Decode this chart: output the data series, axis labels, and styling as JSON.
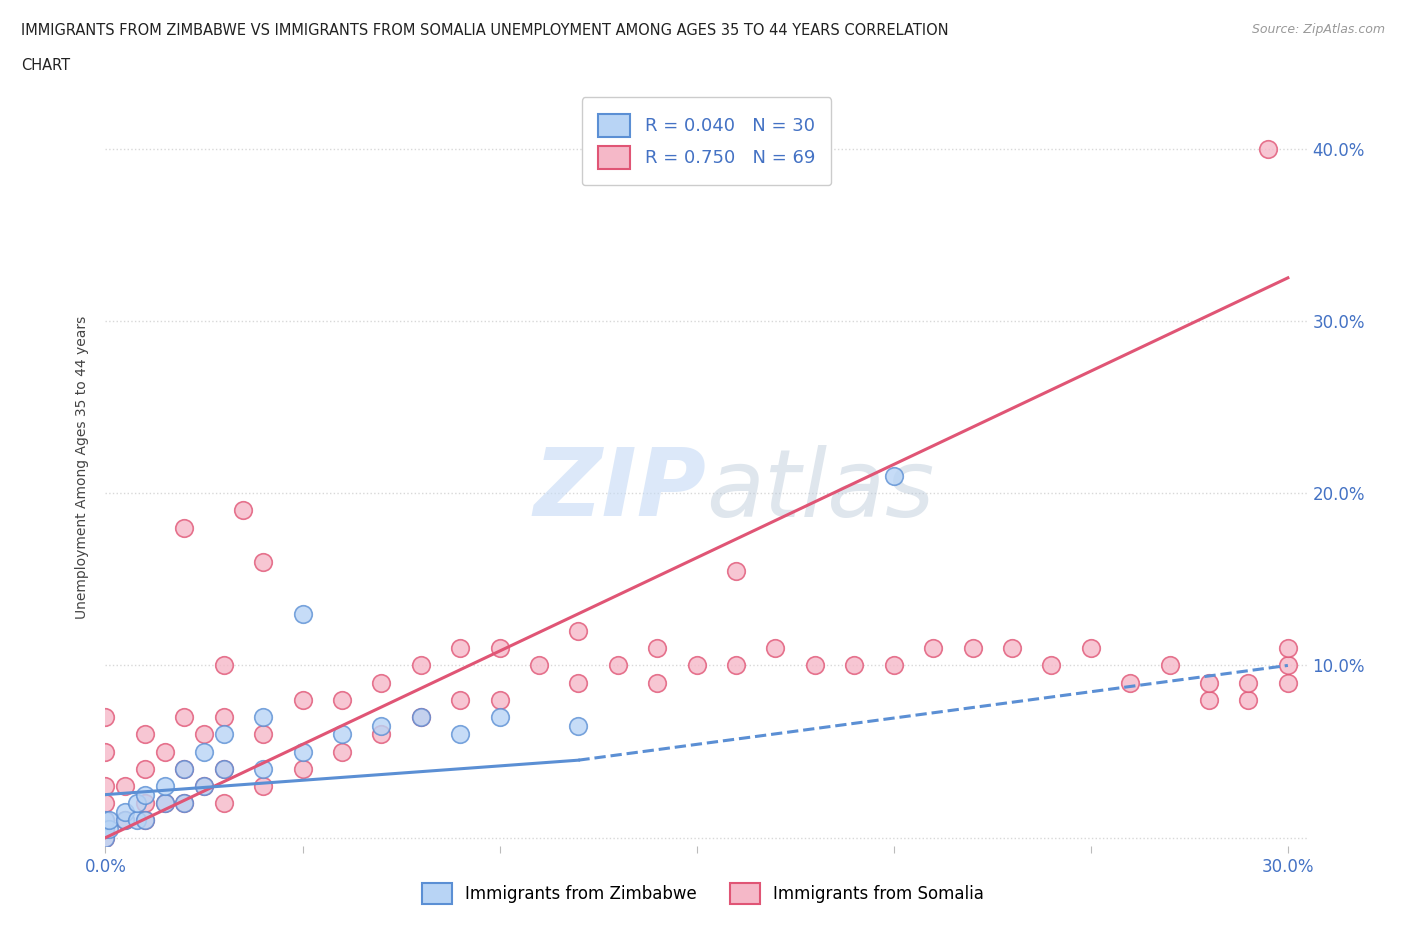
{
  "title_line1": "IMMIGRANTS FROM ZIMBABWE VS IMMIGRANTS FROM SOMALIA UNEMPLOYMENT AMONG AGES 35 TO 44 YEARS CORRELATION",
  "title_line2": "CHART",
  "source": "Source: ZipAtlas.com",
  "ylabel": "Unemployment Among Ages 35 to 44 years",
  "legend_R1": "R = 0.040",
  "legend_N1": "N = 30",
  "legend_R2": "R = 0.750",
  "legend_N2": "N = 69",
  "color_zimbabwe_fill": "#b8d4f5",
  "color_zimbabwe_edge": "#5b8fd4",
  "color_somalia_fill": "#f5b8c8",
  "color_somalia_edge": "#e05575",
  "color_line_zimbabwe": "#5b8fd4",
  "color_line_somalia": "#e05575",
  "color_text_blue": "#4472c4",
  "background_color": "#ffffff",
  "grid_color": "#d8d8d8",
  "watermark_color": "#c5daf5",
  "xlim": [
    0.0,
    0.305
  ],
  "ylim": [
    -0.005,
    0.435
  ],
  "zimbabwe_x": [
    0.0,
    0.0,
    0.0,
    0.001,
    0.001,
    0.005,
    0.005,
    0.008,
    0.008,
    0.01,
    0.01,
    0.015,
    0.015,
    0.02,
    0.02,
    0.025,
    0.025,
    0.03,
    0.03,
    0.04,
    0.04,
    0.05,
    0.05,
    0.06,
    0.07,
    0.08,
    0.09,
    0.1,
    0.12,
    0.2
  ],
  "zimbabwe_y": [
    0.0,
    0.005,
    0.01,
    0.005,
    0.01,
    0.01,
    0.015,
    0.01,
    0.02,
    0.01,
    0.025,
    0.02,
    0.03,
    0.02,
    0.04,
    0.03,
    0.05,
    0.04,
    0.06,
    0.04,
    0.07,
    0.05,
    0.13,
    0.06,
    0.065,
    0.07,
    0.06,
    0.07,
    0.065,
    0.21
  ],
  "somalia_x": [
    0.0,
    0.0,
    0.0,
    0.0,
    0.0,
    0.0,
    0.0,
    0.005,
    0.005,
    0.01,
    0.01,
    0.01,
    0.01,
    0.015,
    0.015,
    0.02,
    0.02,
    0.02,
    0.025,
    0.025,
    0.03,
    0.03,
    0.03,
    0.03,
    0.04,
    0.04,
    0.04,
    0.05,
    0.05,
    0.06,
    0.06,
    0.07,
    0.07,
    0.08,
    0.08,
    0.09,
    0.09,
    0.1,
    0.1,
    0.11,
    0.12,
    0.12,
    0.13,
    0.14,
    0.14,
    0.15,
    0.16,
    0.17,
    0.18,
    0.19,
    0.2,
    0.21,
    0.22,
    0.23,
    0.24,
    0.25,
    0.26,
    0.27,
    0.28,
    0.28,
    0.29,
    0.29,
    0.295,
    0.3,
    0.3,
    0.3,
    0.02,
    0.035,
    0.16
  ],
  "somalia_y": [
    0.0,
    0.005,
    0.01,
    0.02,
    0.03,
    0.05,
    0.07,
    0.01,
    0.03,
    0.01,
    0.02,
    0.04,
    0.06,
    0.02,
    0.05,
    0.02,
    0.04,
    0.07,
    0.03,
    0.06,
    0.02,
    0.04,
    0.07,
    0.1,
    0.03,
    0.06,
    0.16,
    0.04,
    0.08,
    0.05,
    0.08,
    0.06,
    0.09,
    0.07,
    0.1,
    0.08,
    0.11,
    0.08,
    0.11,
    0.1,
    0.09,
    0.12,
    0.1,
    0.09,
    0.11,
    0.1,
    0.1,
    0.11,
    0.1,
    0.1,
    0.1,
    0.11,
    0.11,
    0.11,
    0.1,
    0.11,
    0.09,
    0.1,
    0.08,
    0.09,
    0.08,
    0.09,
    0.4,
    0.09,
    0.1,
    0.11,
    0.18,
    0.19,
    0.155
  ],
  "som_line_x0": 0.0,
  "som_line_y0": 0.0,
  "som_line_x1": 0.3,
  "som_line_y1": 0.325,
  "zim_line_solid_x0": 0.0,
  "zim_line_solid_y0": 0.025,
  "zim_line_solid_x1": 0.12,
  "zim_line_solid_y1": 0.045,
  "zim_line_dash_x0": 0.12,
  "zim_line_dash_y0": 0.045,
  "zim_line_dash_x1": 0.3,
  "zim_line_dash_y1": 0.1
}
